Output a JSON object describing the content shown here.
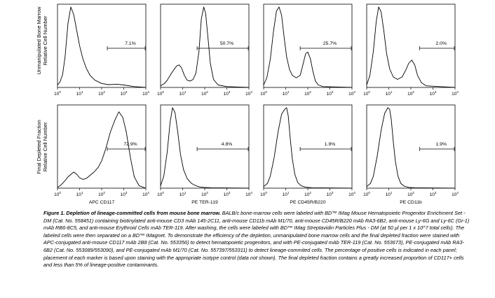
{
  "row_labels": [
    [
      "Unmanipulated Bone Marrow",
      "Relative Cell Number"
    ],
    [
      "Final Depleted Fraction",
      "Relative Cell Number"
    ]
  ],
  "x_tick_labels": [
    "10",
    "10",
    "10",
    "10",
    "10"
  ],
  "x_tick_exponents": [
    "0",
    "1",
    "2",
    "3",
    "4"
  ],
  "column_labels": [
    "APC CD117",
    "PE TER-119",
    "PE CD45R/B220",
    "PE CD11b"
  ],
  "caption": {
    "bold": "Figure 1. Depletion of lineage-committed cells from mouse bone marrow.",
    "text": " BALB/c bone-marrow cells were labeled with BD™ IMag Mouse Hematopoietic Progenitor Enrichment Set - DM (Cat. No. 558451) containing biotinylated anti-mouse CD3 mAb 145-2C11, anti-mouse CD11b mAb M1/70, anti-mouse CD45R/B220 mAb RA3-6B2, anti-mouse Ly-6G and Ly-6C (Gr-1) mAb RB6-8C5, and anti-mouse Erythroid Cells mAb TER-119. After washing, the cells were labeled with BD™ IMag Streptavidin Particles Plus - DM (at 50 µl per 1 x 10^7 total cells). The labeled cells were then separated on a BD™ IMagnet. To demonstrate the efficiency of the depletion, unmanipulated bone marrow cells and the final depleted fraction were stained with APC-conjugated anti-mouse CD117 mAb 2B8 (Cat. No. 553356) to detect hematopoietic progenitors, and with PE-conjugated mAb TER-119 (Cat. No. 553673), PE-conjugated mAb RA3-6B2 (Cat. No. 553089/553090), and PE-conjugated mAb M1/70 (Cat. No. 557397/553311) to detect lineage-commited cells. The percentage of positive cells is indicated in each panel; placement of each marker is based upon staining with the appropriate isotype control (data not shown). The final depleted fraction contains a greatly increased proportion of CD117+ cells and less than 5% of lineage-positive contaminants."
  },
  "chart_data": [
    {
      "type": "area",
      "row": 0,
      "col": 0,
      "marker": "APC CD117",
      "sample": "Unmanipulated Bone Marrow",
      "xscale": "log",
      "xlim": [
        1,
        10000
      ],
      "gate_label": "7.1%",
      "gate_range": [
        180,
        10000
      ],
      "x": [
        1,
        1.3,
        1.7,
        2.2,
        3,
        4,
        5.5,
        7.5,
        10,
        14,
        20,
        30,
        50,
        100,
        200,
        500,
        1000,
        3000,
        10000
      ],
      "y": [
        0.03,
        0.07,
        0.16,
        0.38,
        0.8,
        1.0,
        0.9,
        0.7,
        0.52,
        0.36,
        0.24,
        0.15,
        0.09,
        0.05,
        0.035,
        0.04,
        0.03,
        0.01,
        0
      ]
    },
    {
      "type": "area",
      "row": 0,
      "col": 1,
      "marker": "PE TER-119",
      "sample": "Unmanipulated Bone Marrow",
      "xscale": "log",
      "xlim": [
        1,
        10000
      ],
      "gate_label": "50.7%",
      "gate_range": [
        45,
        10000
      ],
      "x": [
        1,
        1.5,
        2,
        3,
        4,
        5.5,
        7,
        9,
        12,
        16,
        22,
        30,
        40,
        55,
        70,
        90,
        110,
        140,
        180,
        250,
        400,
        1000,
        10000
      ],
      "y": [
        0.02,
        0.05,
        0.09,
        0.17,
        0.22,
        0.27,
        0.28,
        0.24,
        0.15,
        0.09,
        0.08,
        0.1,
        0.18,
        0.45,
        0.85,
        1.0,
        0.92,
        0.62,
        0.3,
        0.1,
        0.03,
        0.01,
        0
      ]
    },
    {
      "type": "area",
      "row": 0,
      "col": 2,
      "marker": "PE CD45R/B220",
      "sample": "Unmanipulated Bone Marrow",
      "xscale": "log",
      "xlim": [
        1,
        10000
      ],
      "gate_label": "25.7%",
      "gate_range": [
        45,
        10000
      ],
      "x": [
        1,
        1.4,
        2,
        2.8,
        3.8,
        5,
        6.5,
        8.5,
        11,
        15,
        20,
        30,
        45,
        60,
        80,
        100,
        130,
        170,
        220,
        300,
        500,
        10000
      ],
      "y": [
        0.03,
        0.12,
        0.35,
        0.7,
        0.95,
        1.0,
        0.9,
        0.62,
        0.38,
        0.22,
        0.15,
        0.12,
        0.15,
        0.28,
        0.42,
        0.44,
        0.36,
        0.2,
        0.08,
        0.03,
        0.01,
        0
      ]
    },
    {
      "type": "area",
      "row": 0,
      "col": 3,
      "marker": "PE CD11b",
      "sample": "Unmanipulated Bone Marrow",
      "xscale": "log",
      "xlim": [
        1,
        10000
      ],
      "gate_label": "2.0%",
      "gate_range": [
        250,
        10000
      ],
      "x": [
        1,
        1.4,
        2,
        2.7,
        3.5,
        4.5,
        6,
        8,
        11,
        16,
        25,
        40,
        60,
        80,
        110,
        150,
        200,
        300,
        500,
        10000
      ],
      "y": [
        0.03,
        0.15,
        0.45,
        0.82,
        1.0,
        0.94,
        0.7,
        0.42,
        0.23,
        0.13,
        0.1,
        0.13,
        0.22,
        0.3,
        0.34,
        0.28,
        0.15,
        0.06,
        0.02,
        0
      ]
    },
    {
      "type": "area",
      "row": 1,
      "col": 0,
      "marker": "APC CD117",
      "sample": "Final Depleted Fraction",
      "xscale": "log",
      "xlim": [
        1,
        10000
      ],
      "gate_label": "72.9%",
      "gate_range": [
        180,
        10000
      ],
      "x": [
        1,
        1.3,
        1.7,
        2.3,
        3,
        4,
        5.5,
        7.5,
        10,
        14,
        20,
        30,
        45,
        70,
        100,
        150,
        250,
        400,
        600,
        900,
        1300,
        2000,
        3000,
        5000,
        10000
      ],
      "y": [
        0.01,
        0.03,
        0.06,
        0.1,
        0.14,
        0.17,
        0.2,
        0.17,
        0.13,
        0.11,
        0.12,
        0.16,
        0.2,
        0.26,
        0.34,
        0.48,
        0.7,
        0.85,
        0.95,
        0.88,
        0.7,
        0.38,
        0.14,
        0.03,
        0
      ]
    },
    {
      "type": "area",
      "row": 1,
      "col": 1,
      "marker": "PE TER-119",
      "sample": "Final Depleted Fraction",
      "xscale": "log",
      "xlim": [
        1,
        10000
      ],
      "gate_label": "4.8%",
      "gate_range": [
        45,
        10000
      ],
      "x": [
        1,
        1.4,
        2,
        2.7,
        3.5,
        4.5,
        6,
        8,
        11,
        16,
        25,
        40,
        60,
        100,
        200,
        10000
      ],
      "y": [
        0.03,
        0.15,
        0.45,
        0.82,
        1.0,
        0.94,
        0.7,
        0.42,
        0.23,
        0.12,
        0.06,
        0.03,
        0.015,
        0.01,
        0.005,
        0
      ]
    },
    {
      "type": "area",
      "row": 1,
      "col": 2,
      "marker": "PE CD45R/B220",
      "sample": "Final Depleted Fraction",
      "xscale": "log",
      "xlim": [
        1,
        10000
      ],
      "gate_label": "1.9%",
      "gate_range": [
        45,
        10000
      ],
      "x": [
        1,
        1.5,
        2,
        3,
        4.5,
        6.5,
        9,
        11,
        13,
        16,
        20,
        26,
        35,
        50,
        80,
        150,
        10000
      ],
      "y": [
        0.02,
        0.06,
        0.15,
        0.38,
        0.7,
        0.92,
        0.98,
        1.0,
        0.9,
        0.62,
        0.36,
        0.17,
        0.07,
        0.03,
        0.012,
        0.005,
        0
      ]
    },
    {
      "type": "area",
      "row": 1,
      "col": 3,
      "marker": "PE CD11b",
      "sample": "Final Depleted Fraction",
      "xscale": "log",
      "xlim": [
        1,
        10000
      ],
      "gate_label": "1.9%",
      "gate_range": [
        250,
        10000
      ],
      "x": [
        1,
        1.5,
        2,
        3,
        4.5,
        6.5,
        9,
        11,
        13,
        16,
        20,
        26,
        35,
        50,
        80,
        150,
        10000
      ],
      "y": [
        0.02,
        0.06,
        0.15,
        0.4,
        0.72,
        0.93,
        1.0,
        0.98,
        0.85,
        0.58,
        0.33,
        0.15,
        0.06,
        0.025,
        0.01,
        0.004,
        0
      ]
    }
  ]
}
